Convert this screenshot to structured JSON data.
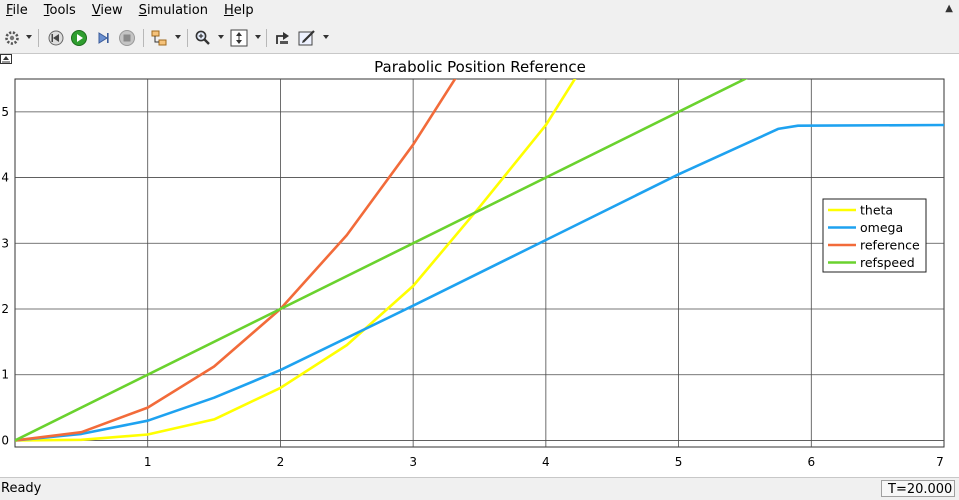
{
  "menu": {
    "items": [
      {
        "mnemonic": "F",
        "rest": "ile"
      },
      {
        "mnemonic": "T",
        "rest": "ools"
      },
      {
        "mnemonic": "V",
        "rest": "iew"
      },
      {
        "mnemonic": "S",
        "rest": "imulation"
      },
      {
        "mnemonic": "H",
        "rest": "elp"
      }
    ]
  },
  "toolbar": {
    "icons": [
      "gear-icon",
      "step-back-icon",
      "run-icon",
      "step-forward-icon",
      "stop-icon",
      "highlight-block-icon",
      "zoom-icon",
      "autoscale-icon",
      "restore-icon",
      "style-icon"
    ]
  },
  "colors": {
    "theta": "#ffff00",
    "omega": "#1ea2f0",
    "reference": "#f26b3a",
    "refspeed": "#6ad22e"
  },
  "chart_data": {
    "type": "line",
    "title": "Parabolic Position Reference",
    "xlim": [
      0,
      7
    ],
    "ylim": [
      -0.1,
      5.5
    ],
    "x_ticks": [
      "1",
      "2",
      "3",
      "4",
      "5",
      "6",
      "7"
    ],
    "y_ticks": [
      "0",
      "1",
      "2",
      "3",
      "4",
      "5"
    ],
    "grid": true,
    "legend_position": "right",
    "series": [
      {
        "name": "theta",
        "points": [
          [
            0,
            0
          ],
          [
            0.5,
            0.01
          ],
          [
            1,
            0.09
          ],
          [
            1.5,
            0.32
          ],
          [
            2,
            0.8
          ],
          [
            2.5,
            1.45
          ],
          [
            3,
            2.35
          ],
          [
            3.5,
            3.55
          ],
          [
            4,
            4.8
          ],
          [
            4.25,
            5.6
          ]
        ]
      },
      {
        "name": "omega",
        "points": [
          [
            0,
            0
          ],
          [
            0.5,
            0.1
          ],
          [
            1,
            0.3
          ],
          [
            1.5,
            0.65
          ],
          [
            2,
            1.07
          ],
          [
            3,
            2.05
          ],
          [
            4,
            3.05
          ],
          [
            5,
            4.05
          ],
          [
            5.6,
            4.6
          ],
          [
            5.75,
            4.74
          ],
          [
            5.9,
            4.79
          ],
          [
            7,
            4.8
          ]
        ]
      },
      {
        "name": "reference",
        "points": [
          [
            0,
            0
          ],
          [
            0.5,
            0.125
          ],
          [
            1,
            0.5
          ],
          [
            1.5,
            1.125
          ],
          [
            2,
            2
          ],
          [
            2.5,
            3.125
          ],
          [
            3,
            4.5
          ],
          [
            3.35,
            5.61
          ]
        ]
      },
      {
        "name": "refspeed",
        "points": [
          [
            0,
            0
          ],
          [
            5.6,
            5.6
          ]
        ]
      }
    ]
  },
  "status": {
    "text": "Ready",
    "time": "T=20.000"
  }
}
